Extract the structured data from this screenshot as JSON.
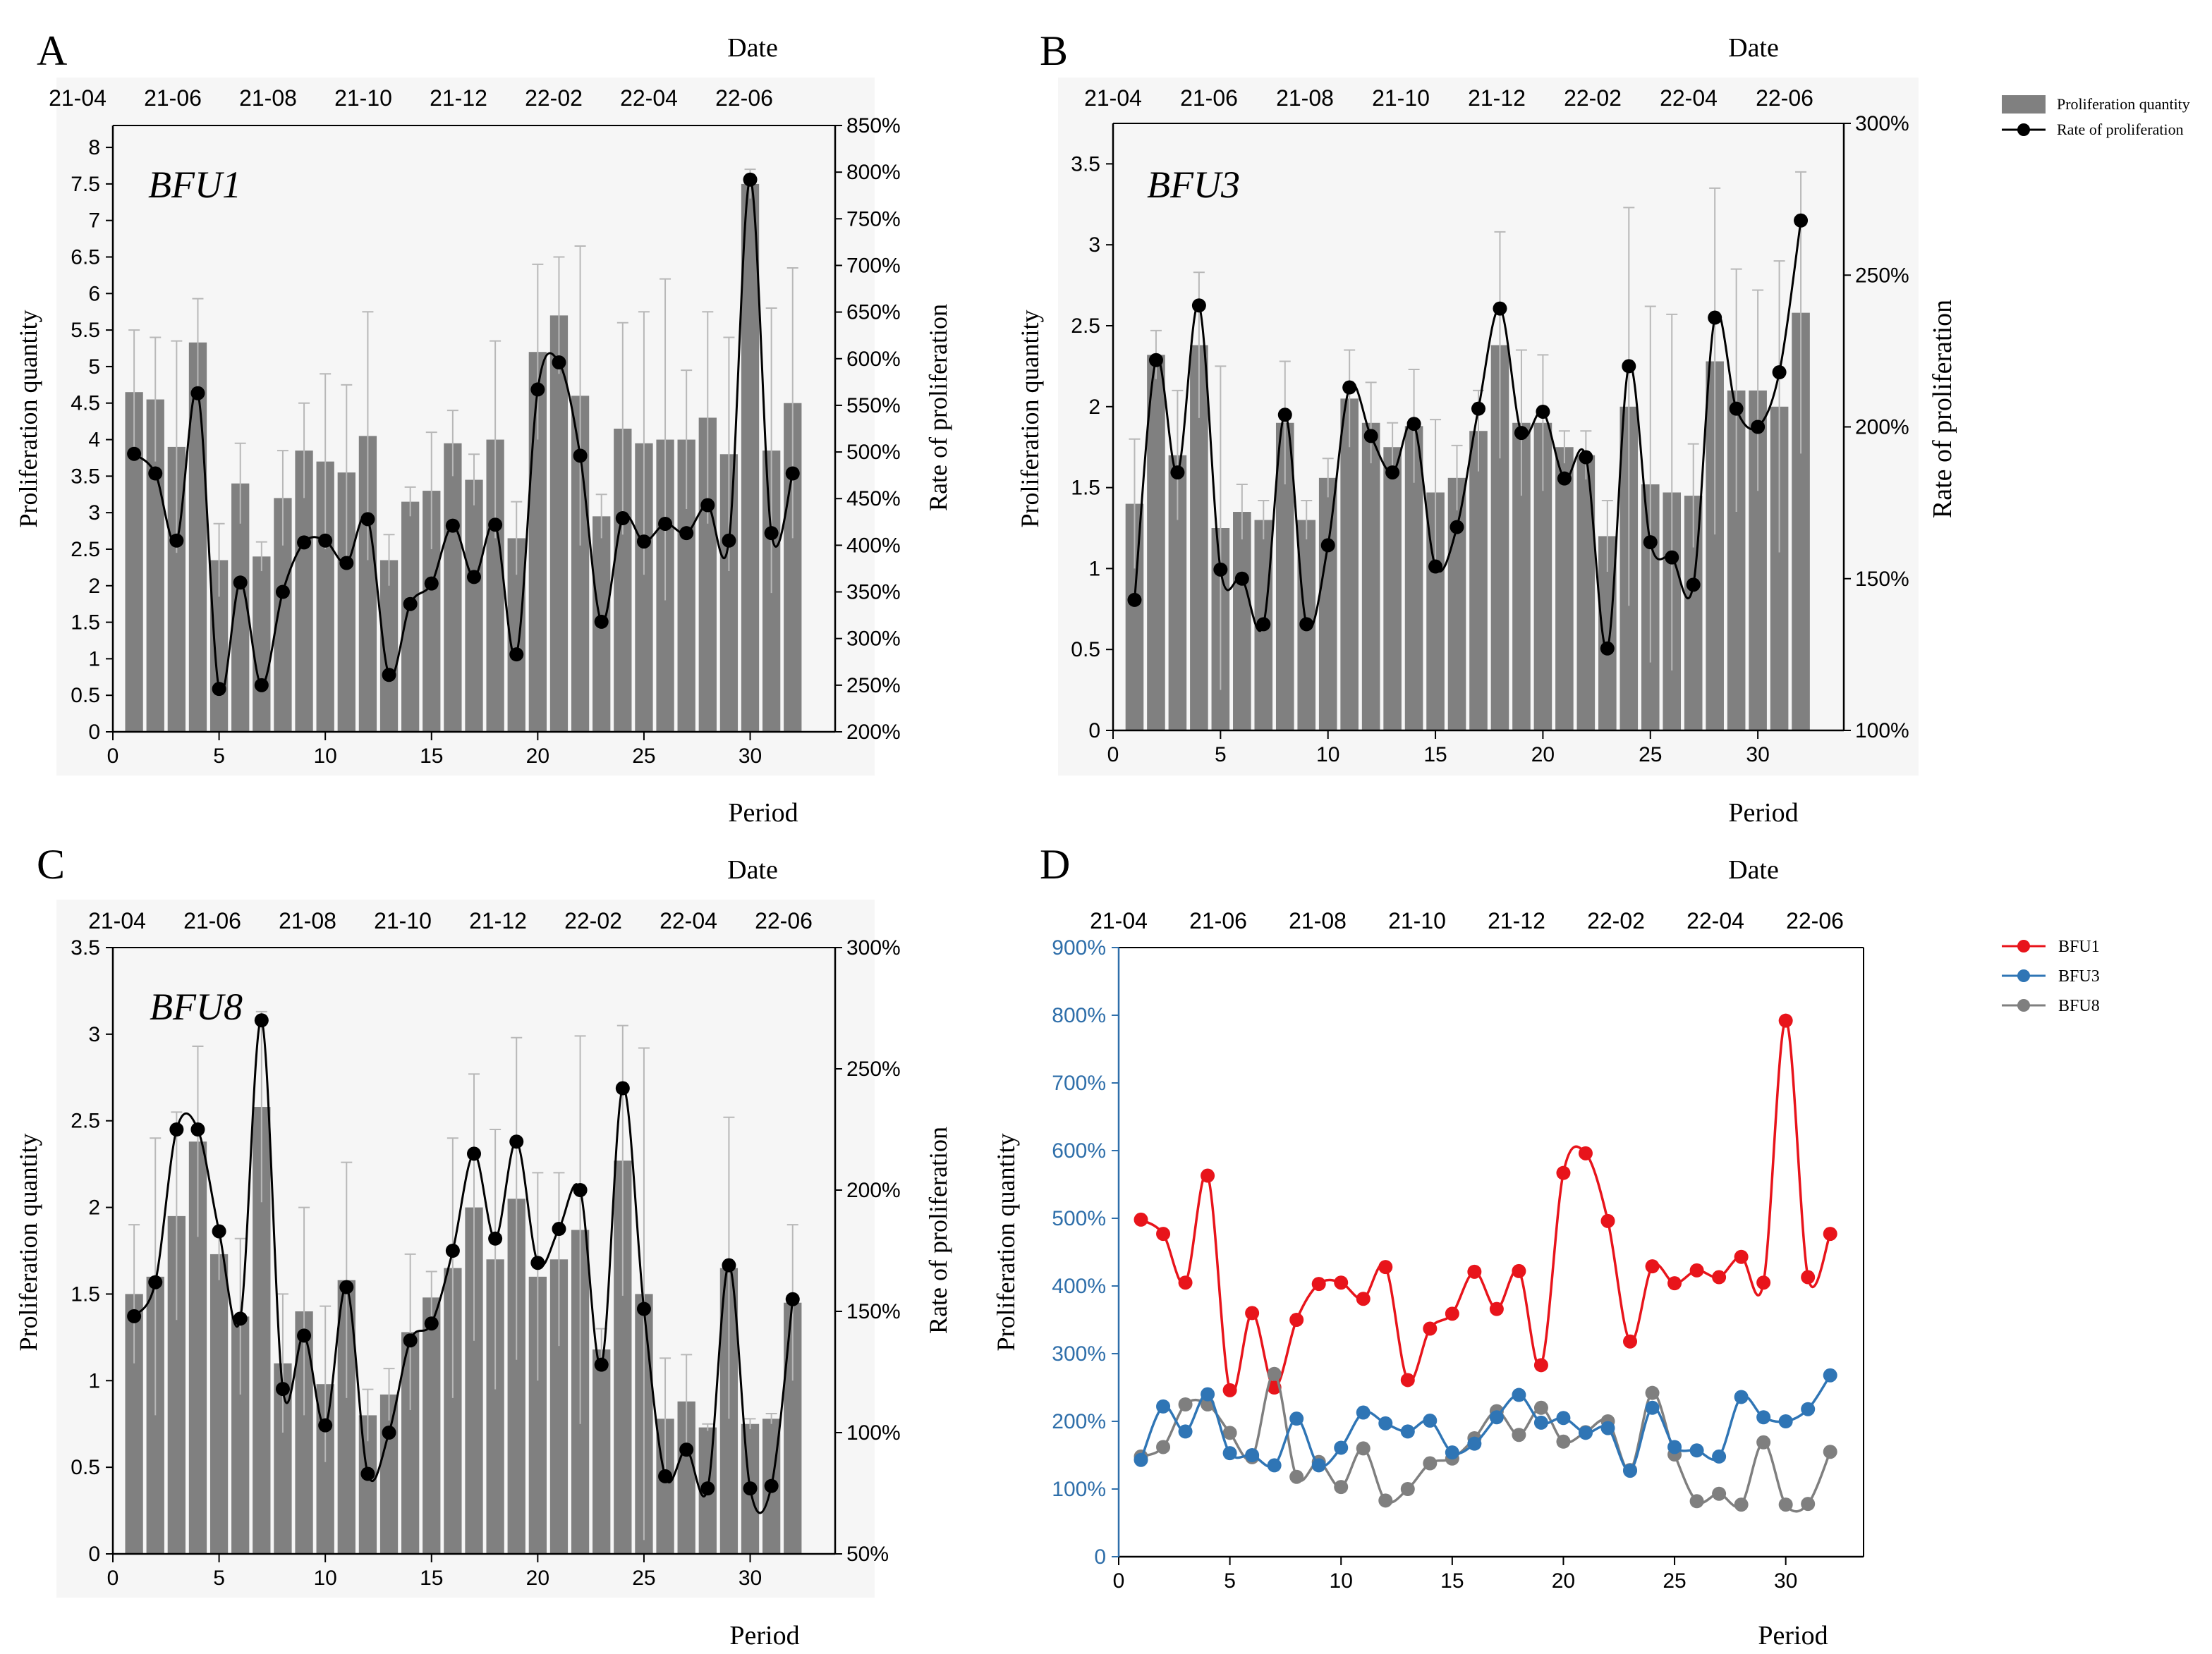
{
  "figure": {
    "background": "#ffffff"
  },
  "legend_ab": {
    "bar_label": "Proliferation quantity",
    "line_label": "Rate of proliferation"
  },
  "chart_data": [
    {
      "id": "A",
      "type": "bar+line",
      "panel_label": "A",
      "title": "BFU1",
      "xlabel": "Period",
      "top_xlabel": "Date",
      "ylabel": "Proliferation quantity",
      "y2label": "Rate of proliferation",
      "xlim": [
        0,
        34
      ],
      "ylim": [
        0,
        8.3
      ],
      "y2lim": [
        200,
        850
      ],
      "xticks": [
        0,
        5,
        10,
        15,
        20,
        25,
        30
      ],
      "yticks": [
        0,
        0.5,
        1,
        1.5,
        2,
        2.5,
        3,
        3.5,
        4,
        4.5,
        5,
        5.5,
        6,
        6.5,
        7,
        7.5,
        8
      ],
      "ytick_labels": [
        "0",
        "0.5",
        "1",
        "1.5",
        "2",
        "2.5",
        "3",
        "3.5",
        "4",
        "4.5",
        "5",
        "5.5",
        "6",
        "6.5",
        "7",
        "7.5",
        "8"
      ],
      "y2ticks": [
        200,
        250,
        300,
        350,
        400,
        450,
        500,
        550,
        600,
        650,
        700,
        750,
        800,
        850
      ],
      "y2tick_labels": [
        "200%",
        "250%",
        "300%",
        "350%",
        "400%",
        "450%",
        "500%",
        "550%",
        "600%",
        "650%",
        "700%",
        "750%",
        "800%",
        "850%"
      ],
      "date_ticks": [
        "21-04",
        "21-06",
        "21-08",
        "21-10",
        "21-12",
        "22-02",
        "22-04",
        "22-06"
      ],
      "period": [
        1,
        2,
        3,
        4,
        5,
        6,
        7,
        8,
        9,
        10,
        11,
        12,
        13,
        14,
        15,
        16,
        17,
        18,
        19,
        20,
        21,
        22,
        23,
        24,
        25,
        26,
        27,
        28,
        29,
        30,
        31,
        32
      ],
      "quantity": [
        4.65,
        4.55,
        3.9,
        5.33,
        2.35,
        3.4,
        2.4,
        3.2,
        3.85,
        3.7,
        3.55,
        4.05,
        2.35,
        3.15,
        3.3,
        3.95,
        3.45,
        4.0,
        2.65,
        5.2,
        5.7,
        4.6,
        2.95,
        4.15,
        3.95,
        4.0,
        4.0,
        4.3,
        3.8,
        7.5,
        3.85,
        4.5
      ],
      "error": [
        0.85,
        0.85,
        1.45,
        0.6,
        0.5,
        0.55,
        0.2,
        0.65,
        0.65,
        1.2,
        1.2,
        1.7,
        0.35,
        0.2,
        0.8,
        0.45,
        0.35,
        1.35,
        0.5,
        1.2,
        0.8,
        2.05,
        0.3,
        1.45,
        1.8,
        2.2,
        0.95,
        1.45,
        1.6,
        0.2,
        1.95,
        1.85
      ],
      "rate": [
        498,
        477,
        405,
        563,
        246,
        360,
        250,
        350,
        403,
        405,
        381,
        428,
        261,
        337,
        359,
        421,
        366,
        422,
        283,
        567,
        596,
        496,
        318,
        429,
        404,
        423,
        413,
        443,
        405,
        792,
        413,
        477
      ],
      "bar_color": "#808080",
      "marker_color": "#000000",
      "line_color": "#000000"
    },
    {
      "id": "B",
      "type": "bar+line",
      "panel_label": "B",
      "title": "BFU3",
      "xlabel": "Period",
      "top_xlabel": "Date",
      "ylabel": "Proliferation quantity",
      "y2label": "Rate of proliferation",
      "xlim": [
        0,
        34
      ],
      "ylim": [
        0,
        3.75
      ],
      "y2lim": [
        100,
        300
      ],
      "xticks": [
        0,
        5,
        10,
        15,
        20,
        25,
        30
      ],
      "yticks": [
        0,
        0.5,
        1,
        1.5,
        2,
        2.5,
        3,
        3.5
      ],
      "ytick_labels": [
        "0",
        "0.5",
        "1",
        "1.5",
        "2",
        "2.5",
        "3",
        "3.5"
      ],
      "y2ticks": [
        100,
        150,
        200,
        250,
        300
      ],
      "y2tick_labels": [
        "100%",
        "150%",
        "200%",
        "250%",
        "300%"
      ],
      "date_ticks": [
        "21-04",
        "21-06",
        "21-08",
        "21-10",
        "21-12",
        "22-02",
        "22-04",
        "22-06"
      ],
      "period": [
        1,
        2,
        3,
        4,
        5,
        6,
        7,
        8,
        9,
        10,
        11,
        12,
        13,
        14,
        15,
        16,
        17,
        18,
        19,
        20,
        21,
        22,
        23,
        24,
        25,
        26,
        27,
        28,
        29,
        30,
        31,
        32
      ],
      "quantity": [
        1.4,
        2.32,
        1.7,
        2.38,
        1.25,
        1.35,
        1.3,
        1.9,
        1.3,
        1.56,
        2.05,
        1.9,
        1.75,
        1.88,
        1.47,
        1.56,
        1.85,
        2.38,
        1.9,
        1.9,
        1.75,
        1.7,
        1.2,
        2.0,
        1.52,
        1.47,
        1.45,
        2.28,
        2.1,
        2.1,
        2.0,
        2.58
      ],
      "error": [
        0.4,
        0.15,
        0.4,
        0.45,
        1.0,
        0.17,
        0.12,
        0.38,
        0.12,
        0.12,
        0.3,
        0.25,
        0.15,
        0.35,
        0.45,
        0.2,
        0.25,
        0.7,
        0.45,
        0.42,
        0.1,
        0.15,
        0.22,
        1.23,
        1.1,
        1.1,
        0.32,
        1.07,
        0.75,
        0.62,
        0.9,
        0.87
      ],
      "rate": [
        143,
        222,
        185,
        240,
        153,
        150,
        135,
        204,
        135,
        161,
        213,
        197,
        185,
        201,
        154,
        167,
        206,
        239,
        198,
        205,
        183,
        190,
        127,
        220,
        162,
        157,
        148,
        236,
        206,
        200,
        218,
        268
      ],
      "bar_color": "#808080",
      "marker_color": "#000000",
      "line_color": "#000000"
    },
    {
      "id": "C",
      "type": "bar+line",
      "panel_label": "C",
      "title": "BFU8",
      "xlabel": "Period",
      "top_xlabel": "Date",
      "ylabel": "Proliferation quantity",
      "y2label": "Rate of proliferation",
      "xlim": [
        0,
        34
      ],
      "ylim": [
        0,
        3.5
      ],
      "y2lim": [
        50,
        300
      ],
      "xticks": [
        0,
        5,
        10,
        15,
        20,
        25,
        30
      ],
      "yticks": [
        0,
        0.5,
        1,
        1.5,
        2,
        2.5,
        3,
        3.5
      ],
      "ytick_labels": [
        "0",
        "0.5",
        "1",
        "1.5",
        "2",
        "2.5",
        "3",
        "3.5"
      ],
      "y2ticks": [
        50,
        100,
        150,
        200,
        250,
        300
      ],
      "y2tick_labels": [
        "50%",
        "100%",
        "150%",
        "200%",
        "250%",
        "300%"
      ],
      "date_ticks": [
        "21-04",
        "21-06",
        "21-08",
        "21-10",
        "21-12",
        "22-02",
        "22-04",
        "22-06"
      ],
      "period": [
        1,
        2,
        3,
        4,
        5,
        6,
        7,
        8,
        9,
        10,
        11,
        12,
        13,
        14,
        15,
        16,
        17,
        18,
        19,
        20,
        21,
        22,
        23,
        24,
        25,
        26,
        27,
        28,
        29,
        30,
        31,
        32
      ],
      "quantity": [
        1.5,
        1.6,
        1.95,
        2.38,
        1.73,
        1.37,
        2.58,
        1.1,
        1.4,
        0.98,
        1.58,
        0.8,
        0.92,
        1.28,
        1.48,
        1.65,
        2.0,
        1.7,
        2.05,
        1.6,
        1.7,
        1.87,
        1.18,
        2.27,
        1.5,
        0.78,
        0.88,
        0.73,
        1.65,
        0.75,
        0.78,
        1.45
      ],
      "error": [
        0.4,
        0.8,
        0.6,
        0.55,
        0.15,
        0.45,
        0.55,
        0.4,
        0.6,
        0.45,
        0.68,
        0.15,
        0.15,
        0.45,
        0.15,
        0.75,
        0.77,
        0.75,
        0.93,
        0.6,
        0.5,
        1.12,
        0.12,
        0.78,
        1.42,
        0.35,
        0.27,
        0.02,
        0.87,
        0.03,
        0.03,
        0.45
      ],
      "rate": [
        148,
        162,
        225,
        225,
        183,
        147,
        270,
        118,
        140,
        103,
        160,
        83,
        100,
        138,
        145,
        175,
        215,
        180,
        220,
        170,
        184,
        200,
        128,
        242,
        151,
        82,
        93,
        77,
        169,
        77,
        78,
        155
      ],
      "bar_color": "#808080",
      "marker_color": "#000000",
      "line_color": "#000000"
    },
    {
      "id": "D",
      "type": "line",
      "panel_label": "D",
      "xlabel": "Period",
      "top_xlabel": "Date",
      "ylabel": "Proliferation quantity",
      "xlim": [
        0,
        33.5
      ],
      "ylim": [
        0,
        900
      ],
      "xticks": [
        0,
        5,
        10,
        15,
        20,
        25,
        30
      ],
      "yticks": [
        0,
        100,
        200,
        300,
        400,
        500,
        600,
        700,
        800,
        900
      ],
      "ytick_labels": [
        "0",
        "100%",
        "200%",
        "300%",
        "400%",
        "500%",
        "600%",
        "700%",
        "800%",
        "900%"
      ],
      "date_ticks": [
        "21-04",
        "21-06",
        "21-08",
        "21-10",
        "21-12",
        "22-02",
        "22-04",
        "22-06"
      ],
      "period": [
        1,
        2,
        3,
        4,
        5,
        6,
        7,
        8,
        9,
        10,
        11,
        12,
        13,
        14,
        15,
        16,
        17,
        18,
        19,
        20,
        21,
        22,
        23,
        24,
        25,
        26,
        27,
        28,
        29,
        30,
        31,
        32
      ],
      "series": [
        {
          "name": "BFU1",
          "color": "#e8141b",
          "values": [
            498,
            477,
            405,
            563,
            246,
            360,
            250,
            350,
            403,
            405,
            381,
            428,
            261,
            337,
            359,
            421,
            366,
            422,
            283,
            567,
            596,
            496,
            318,
            429,
            404,
            423,
            413,
            443,
            405,
            792,
            413,
            477
          ]
        },
        {
          "name": "BFU3",
          "color": "#2f75b5",
          "values": [
            143,
            222,
            185,
            240,
            153,
            150,
            135,
            204,
            135,
            161,
            213,
            197,
            185,
            201,
            154,
            167,
            206,
            239,
            198,
            205,
            183,
            190,
            127,
            220,
            162,
            157,
            148,
            236,
            206,
            200,
            218,
            268
          ]
        },
        {
          "name": "BFU8",
          "color": "#7f7f7f",
          "values": [
            148,
            162,
            225,
            225,
            183,
            147,
            270,
            118,
            140,
            103,
            160,
            83,
            100,
            138,
            145,
            175,
            215,
            180,
            220,
            170,
            184,
            200,
            128,
            242,
            151,
            82,
            93,
            77,
            169,
            77,
            78,
            155
          ]
        }
      ]
    }
  ]
}
